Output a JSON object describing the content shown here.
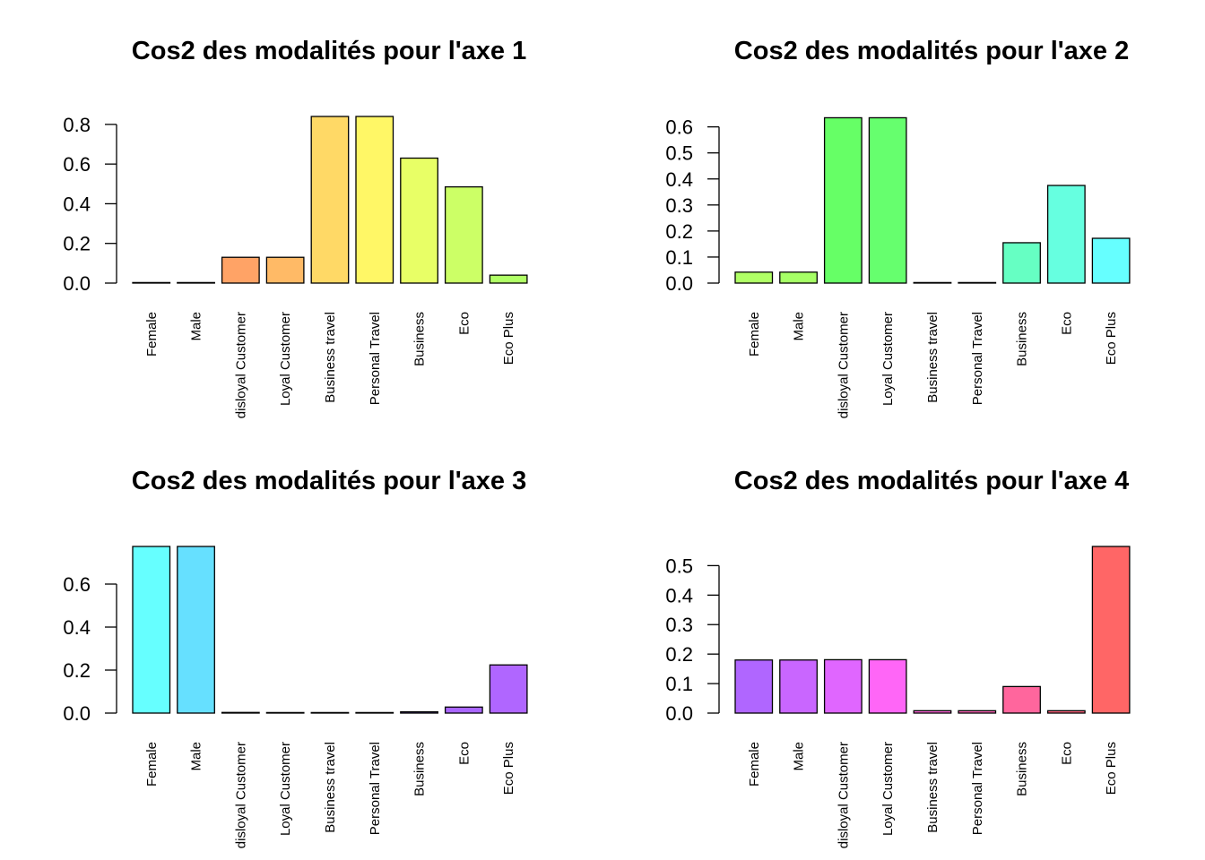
{
  "chart_data": [
    {
      "type": "bar",
      "title": "Cos2 des modalités pour l'axe 1",
      "categories": [
        "Female",
        "Male",
        "disloyal Customer",
        "Loyal Customer",
        "Business travel",
        "Personal Travel",
        "Business",
        "Eco",
        "Eco Plus"
      ],
      "values": [
        0.001,
        0.001,
        0.13,
        0.13,
        0.84,
        0.84,
        0.63,
        0.485,
        0.04
      ],
      "colors": [
        "#FF8C66",
        "#FF9D66",
        "#FFA366",
        "#FFBA66",
        "#FFD966",
        "#FFF766",
        "#E8FF66",
        "#CCFF66",
        "#B0FF66"
      ],
      "ylim": [
        0,
        0.84
      ],
      "yticks": [
        0.0,
        0.2,
        0.4,
        0.6,
        0.8
      ],
      "ytick_labels": [
        "0.0",
        "0.2",
        "0.4",
        "0.6",
        "0.8"
      ],
      "xlabel": "",
      "ylabel": "",
      "grid": false
    },
    {
      "type": "bar",
      "title": "Cos2 des modalités pour l'axe 2",
      "categories": [
        "Female",
        "Male",
        "disloyal Customer",
        "Loyal Customer",
        "Business travel",
        "Personal Travel",
        "Business",
        "Eco",
        "Eco Plus"
      ],
      "values": [
        0.042,
        0.042,
        0.635,
        0.635,
        0.002,
        0.002,
        0.155,
        0.375,
        0.172
      ],
      "colors": [
        "#B0FF66",
        "#A6FF66",
        "#66FF66",
        "#66FF6E",
        "#66FF8C",
        "#66FFA6",
        "#66FFC3",
        "#66FFE0",
        "#66FFFF"
      ],
      "ylim": [
        0,
        0.64
      ],
      "yticks": [
        0.0,
        0.1,
        0.2,
        0.3,
        0.4,
        0.5,
        0.6
      ],
      "ytick_labels": [
        "0.0",
        "0.1",
        "0.2",
        "0.3",
        "0.4",
        "0.5",
        "0.6"
      ],
      "xlabel": "",
      "ylabel": "",
      "grid": false
    },
    {
      "type": "bar",
      "title": "Cos2 des modalités pour l'axe 3",
      "categories": [
        "Female",
        "Male",
        "disloyal Customer",
        "Loyal Customer",
        "Business travel",
        "Personal Travel",
        "Business",
        "Eco",
        "Eco Plus"
      ],
      "values": [
        0.775,
        0.775,
        0.003,
        0.002,
        0.001,
        0.001,
        0.006,
        0.028,
        0.224
      ],
      "colors": [
        "#66FFFF",
        "#66E0FF",
        "#66C3FF",
        "#66A6FF",
        "#6688FF",
        "#6E66FF",
        "#8C66FF",
        "#A966FF",
        "#B066FF"
      ],
      "ylim": [
        0,
        0.775
      ],
      "yticks": [
        0.0,
        0.2,
        0.4,
        0.6
      ],
      "ytick_labels": [
        "0.0",
        "0.2",
        "0.4",
        "0.6"
      ],
      "xlabel": "",
      "ylabel": "",
      "grid": false
    },
    {
      "type": "bar",
      "title": "Cos2 des modalités pour l'axe 4",
      "categories": [
        "Female",
        "Male",
        "disloyal Customer",
        "Loyal Customer",
        "Business travel",
        "Personal Travel",
        "Business",
        "Eco",
        "Eco Plus"
      ],
      "values": [
        0.18,
        0.18,
        0.181,
        0.181,
        0.008,
        0.008,
        0.09,
        0.008,
        0.565
      ],
      "colors": [
        "#B066FF",
        "#C966FF",
        "#E066FF",
        "#FF66F7",
        "#FF66D9",
        "#FF66BA",
        "#FF669D",
        "#FF6680",
        "#FF6666"
      ],
      "ylim": [
        0,
        0.565
      ],
      "yticks": [
        0.0,
        0.1,
        0.2,
        0.3,
        0.4,
        0.5
      ],
      "ytick_labels": [
        "0.0",
        "0.1",
        "0.2",
        "0.3",
        "0.4",
        "0.5"
      ],
      "xlabel": "",
      "ylabel": "",
      "grid": false
    }
  ]
}
